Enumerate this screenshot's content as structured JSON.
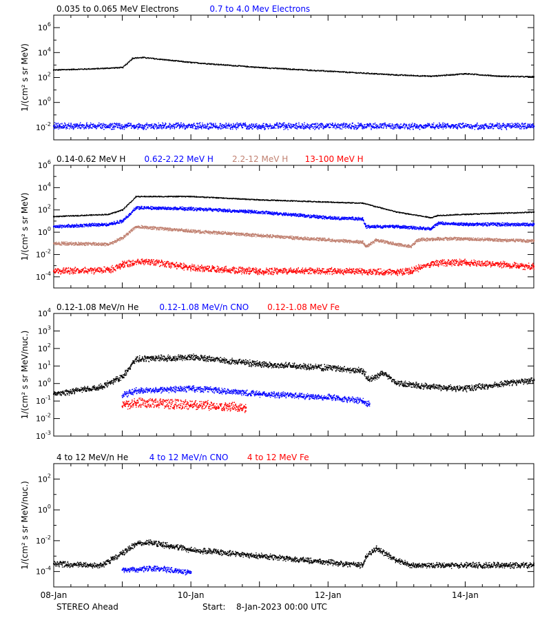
{
  "chart_data": [
    {
      "type": "scatter",
      "ylabel": "1/(cm² s sr MeV)",
      "ylim_log10": [
        -3,
        7
      ],
      "yticks_log10": [
        -2,
        0,
        2,
        4,
        6
      ],
      "series": [
        {
          "name": "0.035 to 0.065 MeV Electrons",
          "color": "#000000",
          "x_days": [
            0,
            0.6,
            1.0,
            1.15,
            1.3,
            2,
            3,
            4,
            5,
            5.5,
            6,
            6.5,
            7
          ],
          "y_log10": [
            2.6,
            2.7,
            2.8,
            3.55,
            3.6,
            3.2,
            2.8,
            2.5,
            2.2,
            2.1,
            2.3,
            2.1,
            2.05
          ]
        },
        {
          "name": "0.7 to 4.0 Mev Electrons",
          "color": "#0000ff",
          "x_days": [
            0,
            7
          ],
          "y_log10": [
            -1.9,
            -1.9
          ]
        }
      ]
    },
    {
      "type": "scatter",
      "ylabel": "1/(cm² s sr MeV)",
      "ylim_log10": [
        -5,
        6
      ],
      "yticks_log10": [
        -4,
        -2,
        0,
        2,
        4,
        6
      ],
      "series": [
        {
          "name": "0.14-0.62 MeV H",
          "color": "#000000",
          "x_days": [
            0,
            0.8,
            1.0,
            1.2,
            2,
            3,
            4,
            4.5,
            5,
            5.5,
            5.6,
            6,
            7
          ],
          "y_log10": [
            1.4,
            1.6,
            2.0,
            3.2,
            3.2,
            2.9,
            2.7,
            2.6,
            1.8,
            1.3,
            1.5,
            1.6,
            1.8
          ]
        },
        {
          "name": "0.62-2.22 MeV H",
          "color": "#0000ff",
          "x_days": [
            0,
            0.8,
            1.0,
            1.2,
            2,
            3,
            4,
            4.5,
            4.55,
            5,
            5.5,
            5.6,
            6,
            7
          ],
          "y_log10": [
            0.5,
            0.7,
            1.0,
            2.2,
            2.1,
            1.8,
            1.3,
            1.2,
            0.5,
            0.5,
            0.3,
            0.8,
            0.7,
            0.7
          ]
        },
        {
          "name": "2.2-12 MeV H",
          "color": "#c08070",
          "x_days": [
            0,
            0.8,
            1.0,
            1.2,
            2,
            3,
            4,
            4.5,
            4.55,
            4.7,
            5,
            5.2,
            5.3,
            5.6,
            6,
            7
          ],
          "y_log10": [
            -1.0,
            -1.1,
            -0.5,
            0.5,
            0.1,
            -0.3,
            -0.7,
            -0.9,
            -1.3,
            -0.7,
            -1.1,
            -1.3,
            -0.7,
            -0.6,
            -0.6,
            -0.8
          ]
        },
        {
          "name": "13-100 MeV H",
          "color": "#ff0000",
          "x_days": [
            0,
            0.8,
            1.0,
            1.3,
            2,
            3,
            4,
            5,
            5.2,
            5.5,
            6,
            7
          ],
          "y_log10": [
            -3.5,
            -3.4,
            -2.9,
            -2.6,
            -3.2,
            -3.5,
            -3.5,
            -3.6,
            -3.5,
            -2.8,
            -2.7,
            -3.1
          ]
        }
      ]
    },
    {
      "type": "scatter",
      "ylabel": "1/(cm² s sr MeV/nuc.)",
      "ylim_log10": [
        -3,
        4
      ],
      "yticks_log10": [
        -3,
        -2,
        -1,
        0,
        1,
        2,
        3,
        4
      ],
      "series": [
        {
          "name": "0.12-1.08 MeV/n He",
          "color": "#000000",
          "x_days": [
            0,
            0.7,
            1.0,
            1.2,
            2,
            3,
            4,
            4.5,
            4.6,
            4.8,
            5,
            5.5,
            6,
            7
          ],
          "y_log10": [
            -0.6,
            -0.2,
            0.4,
            1.4,
            1.5,
            1.1,
            0.9,
            0.7,
            0.2,
            0.6,
            0.0,
            -0.2,
            -0.3,
            0.2
          ]
        },
        {
          "name": "0.12-1.08 MeV/n CNO",
          "color": "#0000ff",
          "x_days": [
            1.0,
            1.2,
            2,
            3,
            4,
            4.5,
            4.6
          ],
          "y_log10": [
            -0.7,
            -0.4,
            -0.3,
            -0.6,
            -0.8,
            -1.0,
            -1.2
          ]
        },
        {
          "name": "0.12-1.08 MeV Fe",
          "color": "#ff0000",
          "x_days": [
            1.0,
            1.2,
            2,
            2.8
          ],
          "y_log10": [
            -1.3,
            -1.1,
            -1.2,
            -1.4
          ]
        }
      ]
    },
    {
      "type": "scatter",
      "ylabel": "1/(cm² s sr MeV/nuc.)",
      "ylim_log10": [
        -5,
        3
      ],
      "yticks_log10": [
        -4,
        -2,
        0,
        2
      ],
      "series": [
        {
          "name": "4 to 12 MeV/n He",
          "color": "#000000",
          "x_days": [
            0,
            0.7,
            1.0,
            1.2,
            1.4,
            2,
            3,
            4,
            4.5,
            4.55,
            4.7,
            5,
            5.2,
            5.3,
            7
          ],
          "y_log10": [
            -3.5,
            -3.6,
            -2.8,
            -2.2,
            -2.1,
            -2.6,
            -3.0,
            -3.4,
            -3.6,
            -3.0,
            -2.5,
            -3.3,
            -3.6,
            -3.6,
            -3.6
          ]
        },
        {
          "name": "4 to 12 MeV/n CNO",
          "color": "#0000ff",
          "x_days": [
            1.0,
            1.5,
            2.0
          ],
          "y_log10": [
            -3.9,
            -3.8,
            -4.1
          ]
        },
        {
          "name": "4 to 12 MeV Fe",
          "color": "#ff0000",
          "x_days": [],
          "y_log10": []
        }
      ],
      "xtick_labels": [
        "08-Jan",
        "10-Jan",
        "12-Jan",
        "14-Jan"
      ],
      "xtick_days": [
        0,
        2,
        4,
        6
      ]
    }
  ],
  "footer": {
    "spacecraft": "STEREO Ahead",
    "start_label": "Start:",
    "start_value": "8-Jan-2023 00:00 UTC"
  }
}
